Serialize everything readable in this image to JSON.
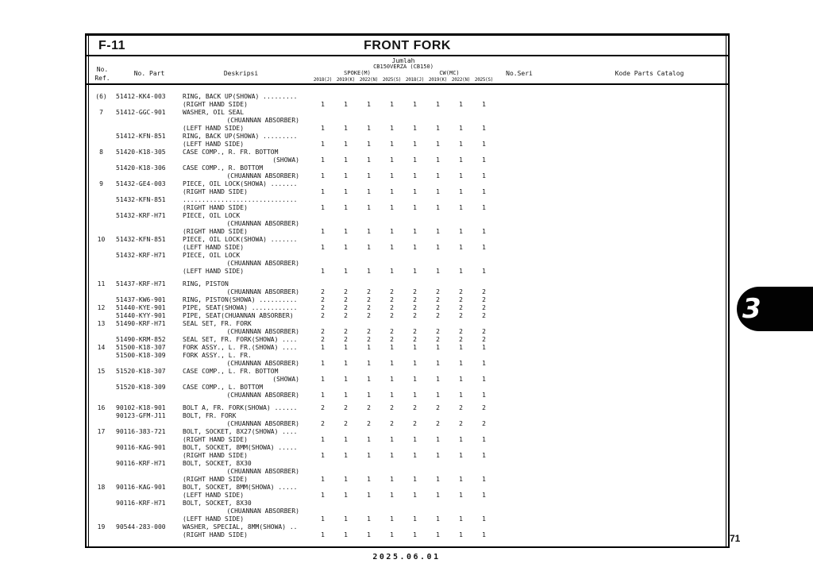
{
  "page": {
    "code": "F-11",
    "title": "FRONT FORK",
    "footer_date": "2025.06.01",
    "page_number": "71",
    "section_tab": "3"
  },
  "table": {
    "headers": {
      "ref_top": "No.",
      "ref_bottom": "Ref.",
      "part": "No. Part",
      "description": "Deskripsi",
      "qty_title": "Jumlah",
      "model": "CB150VERZA (CB150)",
      "variant_left": "SPOKE(M)",
      "variant_right": "CW(MC)",
      "year_cols": [
        "2018(J)",
        "2019(K)",
        "2022(N)",
        "2025(S)",
        "2018(J)",
        "2019(K)",
        "2022(N)",
        "2025(S)"
      ],
      "serial": "No.Seri",
      "catalog": "Kode Parts Catalog"
    },
    "rows": [
      {
        "ref": "(6)",
        "part": "51412-KK4-003",
        "lines": [
          {
            "t": "RING, BACK UP(SHOWA) ........."
          },
          {
            "t": "(RIGHT HAND SIDE)",
            "q": [
              1,
              1,
              1,
              1,
              1,
              1,
              1,
              1
            ]
          }
        ]
      },
      {
        "ref": "7",
        "part": "51412-GGC-901",
        "lines": [
          {
            "t": "WASHER, OIL SEAL"
          },
          {
            "t": "(CHUANNAN ABSORBER)",
            "a": "r"
          },
          {
            "t": "(LEFT HAND SIDE)",
            "q": [
              1,
              1,
              1,
              1,
              1,
              1,
              1,
              1
            ]
          }
        ]
      },
      {
        "ref": "",
        "part": "51412-KFN-851",
        "lines": [
          {
            "t": "RING, BACK UP(SHOWA) ........."
          },
          {
            "t": "(LEFT HAND SIDE)",
            "q": [
              1,
              1,
              1,
              1,
              1,
              1,
              1,
              1
            ]
          }
        ]
      },
      {
        "ref": "8",
        "part": "51420-K18-305",
        "lines": [
          {
            "t": "CASE COMP., R. FR. BOTTOM"
          },
          {
            "t": "(SHOWA)",
            "a": "r",
            "q": [
              1,
              1,
              1,
              1,
              1,
              1,
              1,
              1
            ]
          }
        ]
      },
      {
        "ref": "",
        "part": "51420-K18-306",
        "lines": [
          {
            "t": "CASE COMP., R. BOTTOM"
          },
          {
            "t": "(CHUANNAN ABSORBER)",
            "a": "r",
            "q": [
              1,
              1,
              1,
              1,
              1,
              1,
              1,
              1
            ]
          }
        ]
      },
      {
        "ref": "9",
        "part": "51432-GE4-003",
        "lines": [
          {
            "t": "PIECE, OIL LOCK(SHOWA) ......."
          },
          {
            "t": "(RIGHT HAND SIDE)",
            "q": [
              1,
              1,
              1,
              1,
              1,
              1,
              1,
              1
            ]
          }
        ]
      },
      {
        "ref": "",
        "part": "51432-KFN-851",
        "lines": [
          {
            "t": ".............................."
          },
          {
            "t": "(RIGHT HAND SIDE)",
            "q": [
              1,
              1,
              1,
              1,
              1,
              1,
              1,
              1
            ]
          }
        ]
      },
      {
        "ref": "",
        "part": "51432-KRF-H71",
        "lines": [
          {
            "t": "PIECE, OIL LOCK"
          },
          {
            "t": "(CHUANNAN ABSORBER)",
            "a": "r"
          },
          {
            "t": "(RIGHT HAND SIDE)",
            "q": [
              1,
              1,
              1,
              1,
              1,
              1,
              1,
              1
            ]
          }
        ]
      },
      {
        "ref": "10",
        "part": "51432-KFN-851",
        "lines": [
          {
            "t": "PIECE, OIL LOCK(SHOWA) ......."
          },
          {
            "t": "(LEFT HAND SIDE)",
            "q": [
              1,
              1,
              1,
              1,
              1,
              1,
              1,
              1
            ]
          }
        ]
      },
      {
        "ref": "",
        "part": "51432-KRF-H71",
        "lines": [
          {
            "t": "PIECE, OIL LOCK"
          },
          {
            "t": "(CHUANNAN ABSORBER)",
            "a": "r"
          },
          {
            "t": "(LEFT HAND SIDE)",
            "q": [
              1,
              1,
              1,
              1,
              1,
              1,
              1,
              1
            ]
          }
        ]
      },
      {
        "ref": "11",
        "part": "51437-KRF-H71",
        "gap": true,
        "lines": [
          {
            "t": "RING, PISTON"
          },
          {
            "t": "(CHUANNAN ABSORBER)",
            "a": "r",
            "q": [
              2,
              2,
              2,
              2,
              2,
              2,
              2,
              2
            ]
          }
        ]
      },
      {
        "ref": "",
        "part": "51437-KW6-901",
        "lines": [
          {
            "t": "RING, PISTON(SHOWA) ..........",
            "q": [
              2,
              2,
              2,
              2,
              2,
              2,
              2,
              2
            ]
          }
        ]
      },
      {
        "ref": "12",
        "part": "51440-KYE-901",
        "lines": [
          {
            "t": "PIPE, SEAT(SHOWA) ............",
            "q": [
              2,
              2,
              2,
              2,
              2,
              2,
              2,
              2
            ]
          }
        ]
      },
      {
        "ref": "",
        "part": "51440-KYY-901",
        "lines": [
          {
            "t": "PIPE, SEAT(CHUANNAN ABSORBER)",
            "q": [
              2,
              2,
              2,
              2,
              2,
              2,
              2,
              2
            ]
          }
        ]
      },
      {
        "ref": "13",
        "part": "51490-KRF-H71",
        "lines": [
          {
            "t": "SEAL SET, FR. FORK"
          },
          {
            "t": "(CHUANNAN ABSORBER)",
            "a": "r",
            "q": [
              2,
              2,
              2,
              2,
              2,
              2,
              2,
              2
            ]
          }
        ]
      },
      {
        "ref": "",
        "part": "51490-KRM-852",
        "lines": [
          {
            "t": "SEAL SET, FR. FORK(SHOWA) ....",
            "q": [
              2,
              2,
              2,
              2,
              2,
              2,
              2,
              2
            ]
          }
        ]
      },
      {
        "ref": "14",
        "part": "51500-K18-307",
        "lines": [
          {
            "t": "FORK ASSY., L. FR.(SHOWA) ....",
            "q": [
              1,
              1,
              1,
              1,
              1,
              1,
              1,
              1
            ]
          }
        ]
      },
      {
        "ref": "",
        "part": "51500-K18-309",
        "lines": [
          {
            "t": "FORK ASSY., L. FR."
          },
          {
            "t": "(CHUANNAN ABSORBER)",
            "a": "r",
            "q": [
              1,
              1,
              1,
              1,
              1,
              1,
              1,
              1
            ]
          }
        ]
      },
      {
        "ref": "15",
        "part": "51520-K18-307",
        "lines": [
          {
            "t": "CASE COMP., L. FR. BOTTOM"
          },
          {
            "t": "(SHOWA)",
            "a": "r",
            "q": [
              1,
              1,
              1,
              1,
              1,
              1,
              1,
              1
            ]
          }
        ]
      },
      {
        "ref": "",
        "part": "51520-K18-309",
        "lines": [
          {
            "t": "CASE COMP., L. BOTTOM"
          },
          {
            "t": "(CHUANNAN ABSORBER)",
            "a": "r",
            "q": [
              1,
              1,
              1,
              1,
              1,
              1,
              1,
              1
            ]
          }
        ]
      },
      {
        "ref": "16",
        "part": "90102-K18-901",
        "gap": true,
        "lines": [
          {
            "t": "BOLT A, FR. FORK(SHOWA) ......",
            "q": [
              2,
              2,
              2,
              2,
              2,
              2,
              2,
              2
            ]
          }
        ]
      },
      {
        "ref": "",
        "part": "90123-GFM-J11",
        "lines": [
          {
            "t": "BOLT, FR. FORK"
          },
          {
            "t": "(CHUANNAN ABSORBER)",
            "a": "r",
            "q": [
              2,
              2,
              2,
              2,
              2,
              2,
              2,
              2
            ]
          }
        ]
      },
      {
        "ref": "17",
        "part": "90116-383-721",
        "lines": [
          {
            "t": "BOLT, SOCKET, 8X27(SHOWA) ...."
          },
          {
            "t": "(RIGHT HAND SIDE)",
            "q": [
              1,
              1,
              1,
              1,
              1,
              1,
              1,
              1
            ]
          }
        ]
      },
      {
        "ref": "",
        "part": "90116-KAG-901",
        "lines": [
          {
            "t": "BOLT, SOCKET, 8MM(SHOWA) ....."
          },
          {
            "t": "(RIGHT HAND SIDE)",
            "q": [
              1,
              1,
              1,
              1,
              1,
              1,
              1,
              1
            ]
          }
        ]
      },
      {
        "ref": "",
        "part": "90116-KRF-H71",
        "lines": [
          {
            "t": "BOLT, SOCKET, 8X30"
          },
          {
            "t": "(CHUANNAN ABSORBER)",
            "a": "r"
          },
          {
            "t": "(RIGHT HAND SIDE)",
            "q": [
              1,
              1,
              1,
              1,
              1,
              1,
              1,
              1
            ]
          }
        ]
      },
      {
        "ref": "18",
        "part": "90116-KAG-901",
        "lines": [
          {
            "t": "BOLT, SOCKET, 8MM(SHOWA) ....."
          },
          {
            "t": "(LEFT HAND SIDE)",
            "q": [
              1,
              1,
              1,
              1,
              1,
              1,
              1,
              1
            ]
          }
        ]
      },
      {
        "ref": "",
        "part": "90116-KRF-H71",
        "lines": [
          {
            "t": "BOLT, SOCKET, 8X30"
          },
          {
            "t": "(CHUANNAN ABSORBER)",
            "a": "r"
          },
          {
            "t": "(LEFT HAND SIDE)",
            "q": [
              1,
              1,
              1,
              1,
              1,
              1,
              1,
              1
            ]
          }
        ]
      },
      {
        "ref": "19",
        "part": "90544-283-000",
        "lines": [
          {
            "t": "WASHER, SPECIAL, 8MM(SHOWA) .."
          },
          {
            "t": "(RIGHT HAND SIDE)",
            "q": [
              1,
              1,
              1,
              1,
              1,
              1,
              1,
              1
            ]
          }
        ]
      }
    ]
  }
}
